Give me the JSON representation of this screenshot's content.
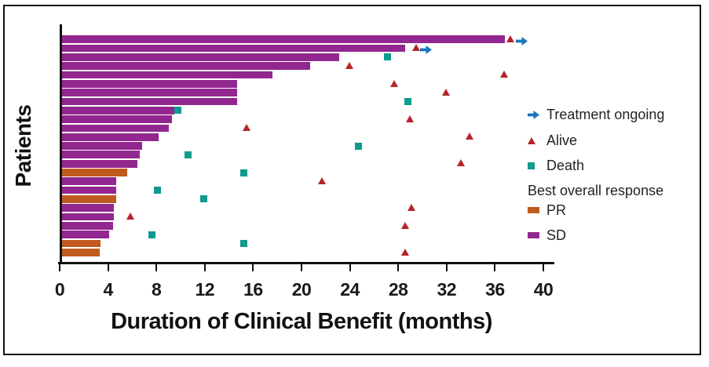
{
  "chart_data": {
    "type": "bar",
    "subtype": "swimmer-plot",
    "orientation": "horizontal",
    "title": "",
    "xlabel": "Duration of Clinical Benefit (months)",
    "ylabel": "Patients",
    "xlim": [
      0,
      40
    ],
    "xticks": [
      0,
      4,
      8,
      12,
      16,
      20,
      24,
      28,
      32,
      36,
      40
    ],
    "grid": false,
    "legend_position": "right",
    "colors": {
      "pr": "#C05A1E",
      "sd": "#92278F",
      "alive": "#B6232A",
      "death": "#0F9B8E",
      "ongoing": "#1B75BB",
      "axis": "#111111",
      "text": "#231F20"
    },
    "patients": [
      {
        "duration_months": 36.8,
        "best_overall_response": "SD",
        "events": [
          {
            "type": "alive",
            "months": 37.3
          },
          {
            "type": "treatment_ongoing",
            "months": 38.1
          }
        ]
      },
      {
        "duration_months": 28.6,
        "best_overall_response": "SD",
        "events": [
          {
            "type": "alive",
            "months": 29.5
          },
          {
            "type": "treatment_ongoing",
            "months": 30.2
          }
        ]
      },
      {
        "duration_months": 23.1,
        "best_overall_response": "SD",
        "events": [
          {
            "type": "death",
            "months": 27.1
          }
        ]
      },
      {
        "duration_months": 20.7,
        "best_overall_response": "SD",
        "events": [
          {
            "type": "alive",
            "months": 24.0
          }
        ]
      },
      {
        "duration_months": 17.6,
        "best_overall_response": "SD",
        "events": [
          {
            "type": "alive",
            "months": 36.8
          }
        ]
      },
      {
        "duration_months": 14.7,
        "best_overall_response": "SD",
        "events": [
          {
            "type": "alive",
            "months": 27.7
          }
        ]
      },
      {
        "duration_months": 14.7,
        "best_overall_response": "SD",
        "events": [
          {
            "type": "alive",
            "months": 32.0
          }
        ]
      },
      {
        "duration_months": 14.7,
        "best_overall_response": "SD",
        "events": [
          {
            "type": "death",
            "months": 28.8
          }
        ]
      },
      {
        "duration_months": 9.5,
        "best_overall_response": "SD",
        "events": [
          {
            "type": "death",
            "months": 9.8
          }
        ]
      },
      {
        "duration_months": 9.3,
        "best_overall_response": "SD",
        "events": [
          {
            "type": "alive",
            "months": 29.0
          }
        ]
      },
      {
        "duration_months": 9.0,
        "best_overall_response": "SD",
        "events": [
          {
            "type": "alive",
            "months": 15.5
          }
        ]
      },
      {
        "duration_months": 8.2,
        "best_overall_response": "SD",
        "events": [
          {
            "type": "alive",
            "months": 33.9
          }
        ]
      },
      {
        "duration_months": 6.8,
        "best_overall_response": "SD",
        "events": [
          {
            "type": "death",
            "months": 24.7
          }
        ]
      },
      {
        "duration_months": 6.6,
        "best_overall_response": "SD",
        "events": [
          {
            "type": "death",
            "months": 10.6
          }
        ]
      },
      {
        "duration_months": 6.4,
        "best_overall_response": "SD",
        "events": [
          {
            "type": "alive",
            "months": 33.2
          }
        ]
      },
      {
        "duration_months": 5.6,
        "best_overall_response": "PR",
        "events": [
          {
            "type": "death",
            "months": 15.2
          }
        ]
      },
      {
        "duration_months": 4.7,
        "best_overall_response": "SD",
        "events": [
          {
            "type": "alive",
            "months": 21.7
          }
        ]
      },
      {
        "duration_months": 4.7,
        "best_overall_response": "SD",
        "events": [
          {
            "type": "death",
            "months": 8.1
          }
        ]
      },
      {
        "duration_months": 4.7,
        "best_overall_response": "PR",
        "events": [
          {
            "type": "death",
            "months": 11.9
          }
        ]
      },
      {
        "duration_months": 4.5,
        "best_overall_response": "SD",
        "events": [
          {
            "type": "alive",
            "months": 29.1
          }
        ]
      },
      {
        "duration_months": 4.5,
        "best_overall_response": "SD",
        "events": [
          {
            "type": "alive",
            "months": 5.9
          }
        ]
      },
      {
        "duration_months": 4.4,
        "best_overall_response": "SD",
        "events": [
          {
            "type": "alive",
            "months": 28.6
          }
        ]
      },
      {
        "duration_months": 4.1,
        "best_overall_response": "SD",
        "events": [
          {
            "type": "death",
            "months": 7.6
          }
        ]
      },
      {
        "duration_months": 3.4,
        "best_overall_response": "PR",
        "events": [
          {
            "type": "death",
            "months": 15.2
          }
        ]
      },
      {
        "duration_months": 3.3,
        "best_overall_response": "PR",
        "events": [
          {
            "type": "alive",
            "months": 28.6
          }
        ]
      }
    ],
    "legend": [
      {
        "marker": "arrow",
        "color_key": "ongoing",
        "label": "Treatment ongoing"
      },
      {
        "marker": "triangle",
        "color_key": "alive",
        "label": "Alive"
      },
      {
        "marker": "square",
        "color_key": "death",
        "label": "Death"
      },
      {
        "marker": "none",
        "color_key": "text",
        "label": "Best overall response"
      },
      {
        "marker": "swatch",
        "color_key": "pr",
        "label": "PR"
      },
      {
        "marker": "swatch",
        "color_key": "sd",
        "label": "SD"
      }
    ]
  }
}
